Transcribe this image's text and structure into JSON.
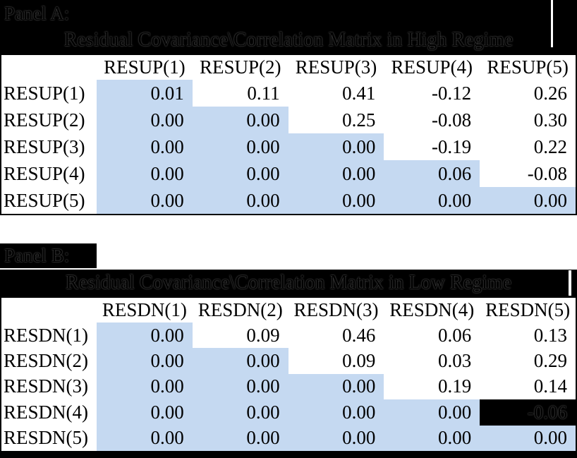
{
  "colors": {
    "shaded_cell": "#C5D9F1",
    "band_background": "#000000",
    "table_border": "#000000",
    "page_background": "#FFFFFF"
  },
  "panel_a": {
    "label": "Panel A:",
    "title": "Residual Covariance\\Correlation Matrix in High Regime",
    "columns": [
      "RESUP(1)",
      "RESUP(2)",
      "RESUP(3)",
      "RESUP(4)",
      "RESUP(5)"
    ],
    "rows": [
      {
        "label": "RESUP(1)",
        "values": [
          "0.01",
          "0.11",
          "0.41",
          "-0.12",
          "0.26"
        ]
      },
      {
        "label": "RESUP(2)",
        "values": [
          "0.00",
          "0.00",
          "0.25",
          "-0.08",
          "0.30"
        ]
      },
      {
        "label": "RESUP(3)",
        "values": [
          "0.00",
          "0.00",
          "0.00",
          "-0.19",
          "0.22"
        ]
      },
      {
        "label": "RESUP(4)",
        "values": [
          "0.00",
          "0.00",
          "0.00",
          "0.06",
          "-0.08"
        ]
      },
      {
        "label": "RESUP(5)",
        "values": [
          "0.00",
          "0.00",
          "0.00",
          "0.00",
          "0.00"
        ]
      }
    ]
  },
  "panel_b": {
    "label": "Panel B:",
    "title": "Residual Covariance\\Correlation Matrix in Low Regime",
    "columns": [
      "RESDN(1)",
      "RESDN(2)",
      "RESDN(3)",
      "RESDN(4)",
      "RESDN(5)"
    ],
    "rows": [
      {
        "label": "RESDN(1)",
        "values": [
          "0.00",
          "0.09",
          "0.46",
          "0.06",
          "0.13"
        ]
      },
      {
        "label": "RESDN(2)",
        "values": [
          "0.00",
          "0.00",
          "0.09",
          "0.03",
          "0.29"
        ]
      },
      {
        "label": "RESDN(3)",
        "values": [
          "0.00",
          "0.00",
          "0.00",
          "0.19",
          "0.14"
        ]
      },
      {
        "label": "RESDN(4)",
        "values": [
          "0.00",
          "0.00",
          "0.00",
          "0.00",
          "-0.06"
        ]
      },
      {
        "label": "RESDN(5)",
        "values": [
          "0.00",
          "0.00",
          "0.00",
          "0.00",
          "0.00"
        ]
      }
    ],
    "black_cell": {
      "row_index": 3,
      "col_index": 4
    }
  }
}
